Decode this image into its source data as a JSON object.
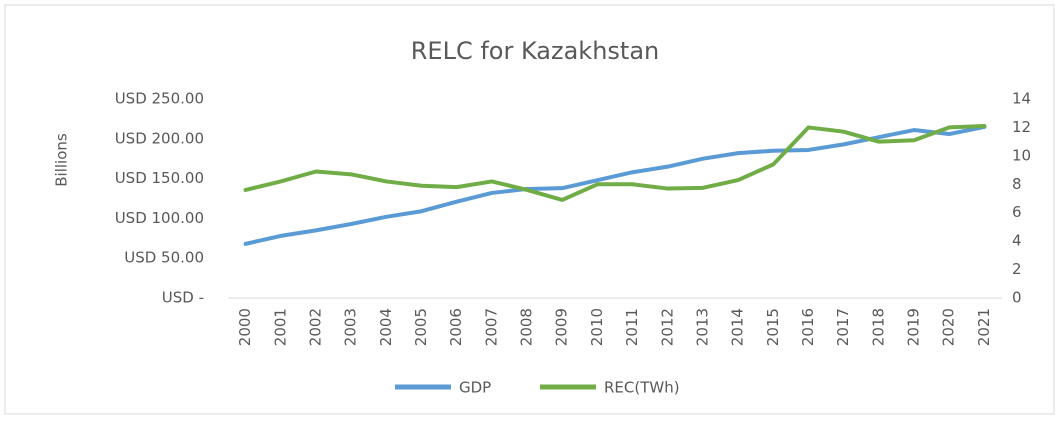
{
  "chart_data": {
    "type": "line",
    "title": "RELC for Kazakhstan",
    "ylabel": "Billions",
    "categories": [
      "2000",
      "2001",
      "2002",
      "2003",
      "2004",
      "2005",
      "2006",
      "2007",
      "2008",
      "2009",
      "2010",
      "2011",
      "2012",
      "2013",
      "2014",
      "2015",
      "2016",
      "2017",
      "2018",
      "2019",
      "2020",
      "2021"
    ],
    "series": [
      {
        "name": "GDP",
        "color": "#5b9bd5",
        "values": [
          68,
          78,
          85,
          93,
          102,
          109,
          121,
          132,
          137,
          138,
          148,
          158,
          165,
          175,
          182,
          185,
          186,
          193,
          202,
          211,
          206,
          215
        ]
      },
      {
        "name": "REC(TWh)",
        "color": "#70ad47",
        "axis": "y2",
        "values": [
          7.6,
          8.2,
          8.9,
          8.7,
          8.2,
          7.9,
          7.8,
          8.2,
          7.6,
          6.9,
          8.0,
          8.0,
          7.7,
          7.75,
          8.3,
          9.4,
          12.0,
          11.7,
          11.0,
          11.1,
          12.0,
          12.1
        ]
      }
    ],
    "ylim": [
      0,
      250
    ],
    "yticks": [
      {
        "value": 0,
        "label": "USD -"
      },
      {
        "value": 50,
        "label": "USD 50.00"
      },
      {
        "value": 100,
        "label": "USD 100.00"
      },
      {
        "value": 150,
        "label": "USD 150.00"
      },
      {
        "value": 200,
        "label": "USD 200.00"
      },
      {
        "value": 250,
        "label": "USD 250.00"
      }
    ],
    "y2lim": [
      0,
      14
    ],
    "y2ticks": [
      0,
      2,
      4,
      6,
      8,
      10,
      12,
      14
    ],
    "grid": false,
    "legend": "bottom"
  }
}
